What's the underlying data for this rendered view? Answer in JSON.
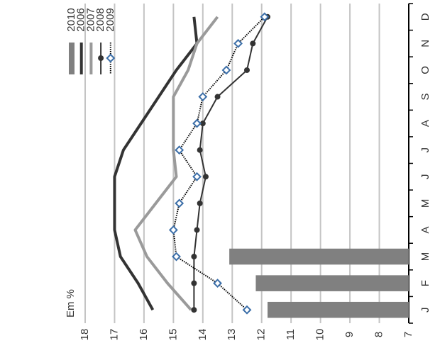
{
  "chart_data": {
    "type": "line",
    "y_label": "Em %",
    "categories": [
      "J",
      "F",
      "M",
      "A",
      "M",
      "J",
      "J",
      "A",
      "S",
      "O",
      "N",
      "D"
    ],
    "ylim": [
      7,
      18
    ],
    "yticks": [
      18,
      17,
      16,
      15,
      14,
      13,
      12,
      11,
      10,
      9,
      8,
      7
    ],
    "grid": true,
    "legend": "top-left",
    "series": [
      {
        "name": "2010",
        "type": "bar",
        "color": "#808080",
        "values": [
          11.8,
          12.2,
          13.1,
          null,
          null,
          null,
          null,
          null,
          null,
          null,
          null,
          null
        ]
      },
      {
        "name": "2006",
        "color": "#333333",
        "values": [
          15.7,
          16.2,
          16.8,
          17.0,
          17.0,
          17.0,
          16.7,
          16.1,
          15.5,
          14.9,
          14.2,
          14.3
        ]
      },
      {
        "name": "2007",
        "color": "#9a9a9a",
        "values": [
          14.4,
          15.2,
          15.9,
          16.3,
          15.6,
          14.9,
          15.0,
          15.0,
          15.0,
          14.5,
          14.2,
          13.5
        ]
      },
      {
        "name": "2008",
        "color": "#333333",
        "marker": "circle",
        "values": [
          14.3,
          14.3,
          14.3,
          14.2,
          14.1,
          13.9,
          14.1,
          14.0,
          13.5,
          12.5,
          12.3,
          11.8
        ]
      },
      {
        "name": "2009",
        "color": "#3b6ea8",
        "marker": "diamond",
        "dash": "dotted",
        "values": [
          12.5,
          13.5,
          14.9,
          15.0,
          14.8,
          14.2,
          14.8,
          14.2,
          14.0,
          13.2,
          12.8,
          11.9
        ]
      }
    ]
  }
}
